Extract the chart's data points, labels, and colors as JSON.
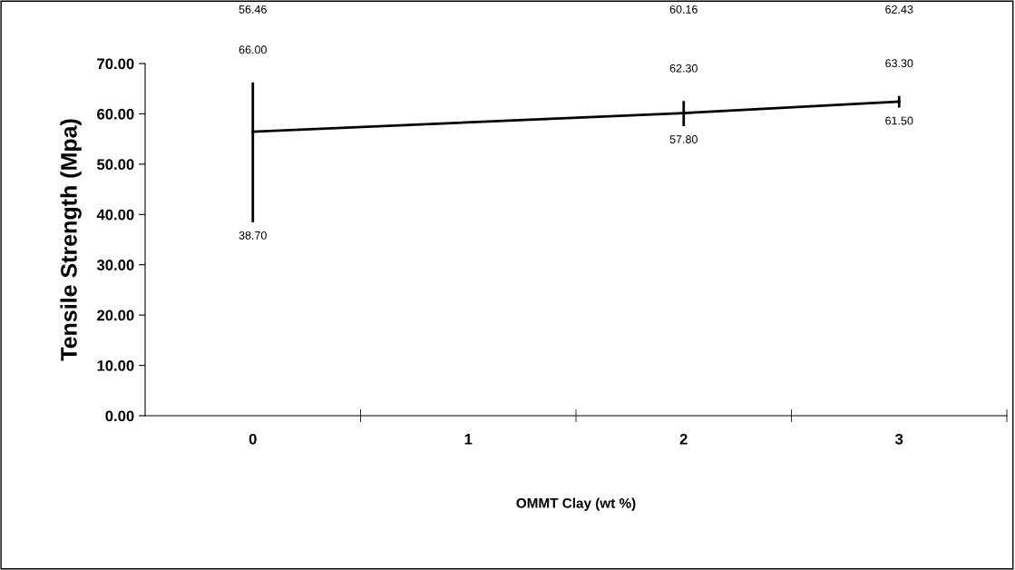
{
  "chart_data": {
    "type": "line",
    "xlabel": "OMMT Clay (wt %)",
    "ylabel": "Tensile Strength (Mpa)",
    "categories": [
      "0",
      "1",
      "2",
      "3"
    ],
    "series": [
      {
        "color": "#000000",
        "values": [
          56.46,
          null,
          60.16,
          62.43
        ],
        "errors": [
          [
            38.7,
            66.0
          ],
          null,
          [
            57.8,
            62.3
          ],
          [
            61.5,
            63.3
          ]
        ]
      }
    ],
    "value_labels": [
      "56.46",
      null,
      "60.16",
      "62.43"
    ],
    "annotations": [
      {
        "text": "66.00",
        "x": "0",
        "y": 66.0
      },
      {
        "text": "38.70",
        "x": "0",
        "y": 38.7
      },
      {
        "text": "62.30",
        "x": "2",
        "y": 62.3
      },
      {
        "text": "57.80",
        "x": "2",
        "y": 57.8
      },
      {
        "text": "63.30",
        "x": "3",
        "y": 63.3
      },
      {
        "text": "61.50",
        "x": "3",
        "y": 61.5
      }
    ],
    "ylim": [
      0,
      70
    ],
    "yticks": [
      {
        "value": 0,
        "label": "0.00"
      },
      {
        "value": 10,
        "label": "10.00"
      },
      {
        "value": 20,
        "label": "20.00"
      },
      {
        "value": 30,
        "label": "30.00"
      },
      {
        "value": 40,
        "label": "40.00"
      },
      {
        "value": 50,
        "label": "50.00"
      },
      {
        "value": 60,
        "label": "60.00"
      },
      {
        "value": 70,
        "label": "70.00"
      }
    ],
    "grid": false,
    "legend": false,
    "marker": "none",
    "line_style": "solid"
  }
}
